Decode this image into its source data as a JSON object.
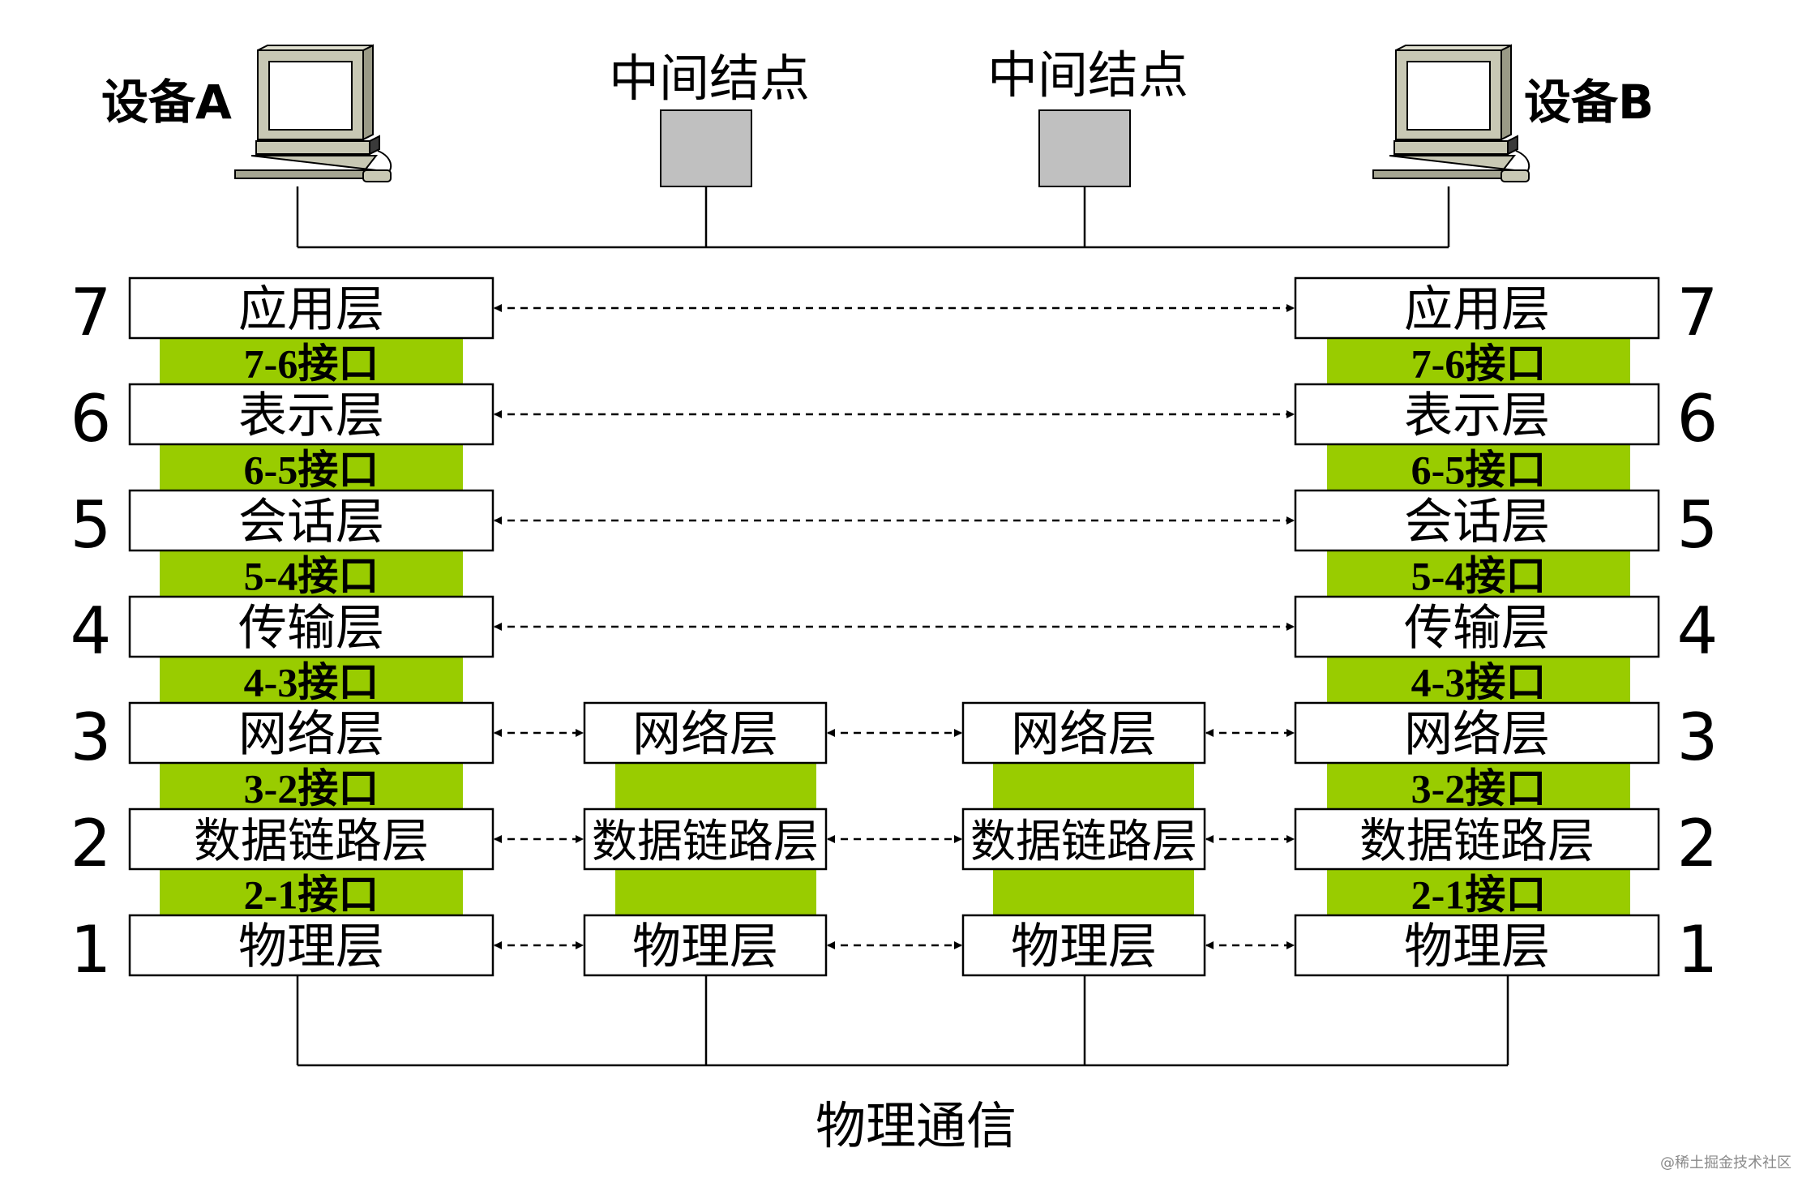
{
  "devices": {
    "a_label": "设备A",
    "b_label": "设备B",
    "node1_label": "中间结点",
    "node2_label": "中间结点"
  },
  "layer_numbers": [
    "7",
    "6",
    "5",
    "4",
    "3",
    "2",
    "1"
  ],
  "end_layers": [
    "应用层",
    "表示层",
    "会话层",
    "传输层",
    "网络层",
    "数据链路层",
    "物理层"
  ],
  "end_interfaces": [
    "7-6接口",
    "6-5接口",
    "5-4接口",
    "4-3接口",
    "3-2接口",
    "2-1接口"
  ],
  "mid_layers": [
    "网络层",
    "数据链路层",
    "物理层"
  ],
  "bottom_label": "物理通信",
  "watermark": "@稀土掘金技术社区",
  "colors": {
    "interface_green": "#99cc00",
    "node_gray": "#c0c0c0",
    "line": "#000000",
    "box_fill": "#ffffff"
  }
}
